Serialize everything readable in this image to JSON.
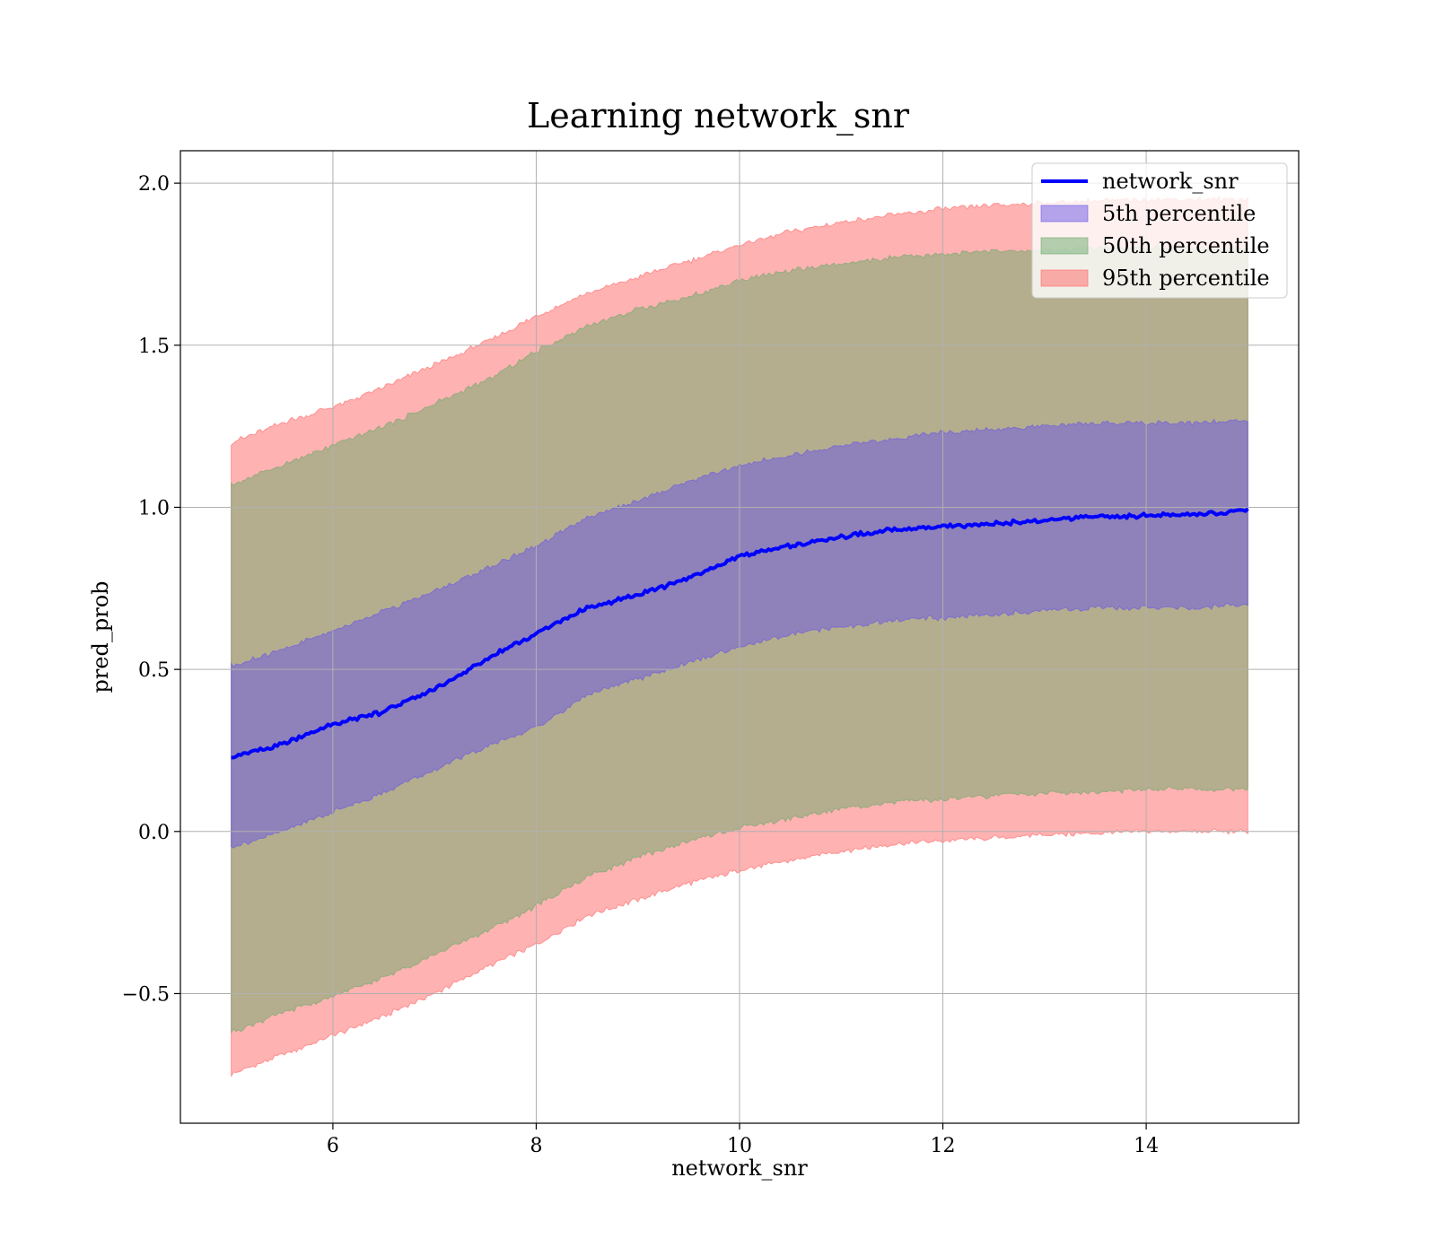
{
  "chart_data": {
    "type": "area",
    "title": "Learning network_snr",
    "xlabel": "network_snr",
    "ylabel": "pred_prob",
    "xlim": [
      4.5,
      15.5
    ],
    "ylim": [
      -0.9,
      2.1
    ],
    "xticks": [
      6,
      8,
      10,
      12,
      14
    ],
    "yticks": [
      -0.5,
      0.0,
      0.5,
      1.0,
      1.5,
      2.0
    ],
    "xtick_labels": [
      "6",
      "8",
      "10",
      "12",
      "14"
    ],
    "ytick_labels": [
      "−0.5",
      "0.0",
      "0.5",
      "1.0",
      "1.5",
      "2.0"
    ],
    "grid": true,
    "legend_position": "top-right",
    "x": [
      5,
      5.5,
      6,
      6.5,
      7,
      7.5,
      8,
      8.5,
      9,
      9.5,
      10,
      10.5,
      11,
      11.5,
      12,
      12.5,
      13,
      13.5,
      14,
      14.5,
      15
    ],
    "series": [
      {
        "name": "network_snr",
        "kind": "line",
        "color": "#0000ff",
        "values": [
          0.23,
          0.27,
          0.33,
          0.37,
          0.44,
          0.53,
          0.61,
          0.69,
          0.73,
          0.78,
          0.85,
          0.88,
          0.91,
          0.93,
          0.94,
          0.95,
          0.96,
          0.97,
          0.975,
          0.978,
          0.99
        ]
      },
      {
        "name": "5th percentile",
        "kind": "band",
        "color": "#6a55e6",
        "lower": [
          -0.05,
          0.0,
          0.06,
          0.12,
          0.19,
          0.26,
          0.32,
          0.42,
          0.47,
          0.52,
          0.57,
          0.61,
          0.63,
          0.65,
          0.66,
          0.67,
          0.68,
          0.69,
          0.69,
          0.69,
          0.7
        ],
        "upper": [
          0.51,
          0.56,
          0.62,
          0.68,
          0.74,
          0.81,
          0.88,
          0.97,
          1.02,
          1.08,
          1.13,
          1.16,
          1.19,
          1.21,
          1.23,
          1.24,
          1.25,
          1.26,
          1.26,
          1.26,
          1.27
        ]
      },
      {
        "name": "50th percentile",
        "kind": "band",
        "color": "#6aaa6a",
        "lower": [
          -0.62,
          -0.56,
          -0.51,
          -0.45,
          -0.38,
          -0.31,
          -0.23,
          -0.14,
          -0.08,
          -0.03,
          0.01,
          0.04,
          0.07,
          0.09,
          0.1,
          0.11,
          0.12,
          0.12,
          0.13,
          0.13,
          0.13
        ],
        "upper": [
          1.07,
          1.13,
          1.19,
          1.25,
          1.32,
          1.39,
          1.48,
          1.56,
          1.61,
          1.65,
          1.7,
          1.73,
          1.75,
          1.77,
          1.78,
          1.79,
          1.79,
          1.8,
          1.8,
          1.8,
          1.8
        ]
      },
      {
        "name": "95th percentile",
        "kind": "band",
        "color": "#ff6666",
        "lower": [
          -0.75,
          -0.69,
          -0.63,
          -0.57,
          -0.5,
          -0.42,
          -0.35,
          -0.26,
          -0.21,
          -0.16,
          -0.12,
          -0.09,
          -0.06,
          -0.04,
          -0.03,
          -0.02,
          -0.01,
          -0.005,
          0.0,
          0.0,
          0.0
        ],
        "upper": [
          1.2,
          1.26,
          1.31,
          1.37,
          1.44,
          1.51,
          1.59,
          1.66,
          1.71,
          1.76,
          1.81,
          1.85,
          1.88,
          1.9,
          1.92,
          1.93,
          1.94,
          1.945,
          1.95,
          1.95,
          1.95
        ]
      }
    ]
  }
}
